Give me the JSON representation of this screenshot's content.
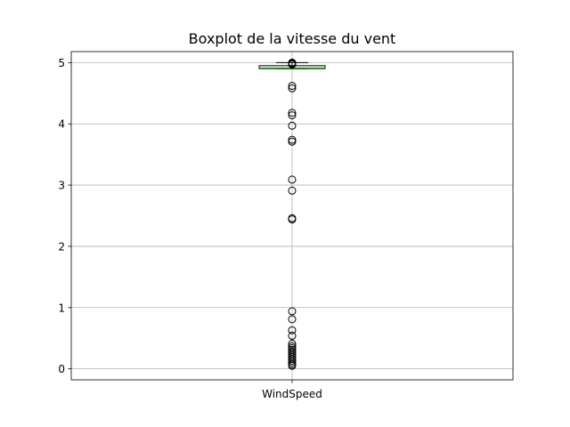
{
  "chart_data": {
    "type": "boxplot",
    "title": "Boxplot de la vitesse du vent",
    "categories": [
      "WindSpeed"
    ],
    "ylim": [
      -0.18,
      5.18
    ],
    "yticks": [
      0,
      1,
      2,
      3,
      4,
      5
    ],
    "ytick_labels": [
      "0",
      "1",
      "2",
      "3",
      "4",
      "5"
    ],
    "grid": true,
    "box": {
      "q1": 4.9,
      "median": 4.91,
      "q3": 4.95,
      "whisker_low": 4.9,
      "whisker_high": 5.0
    },
    "outliers": [
      5.0,
      4.99,
      4.98,
      4.97,
      4.62,
      4.58,
      4.18,
      4.14,
      3.97,
      3.74,
      3.71,
      3.09,
      2.91,
      2.46,
      2.44,
      0.94,
      0.81,
      0.63,
      0.54,
      0.41,
      0.37,
      0.34,
      0.31,
      0.28,
      0.25,
      0.22,
      0.19,
      0.16,
      0.13,
      0.1,
      0.07,
      0.05
    ],
    "colors": {
      "box": "#000000",
      "median": "#2ca02c",
      "grid": "#b0b0b0"
    }
  }
}
